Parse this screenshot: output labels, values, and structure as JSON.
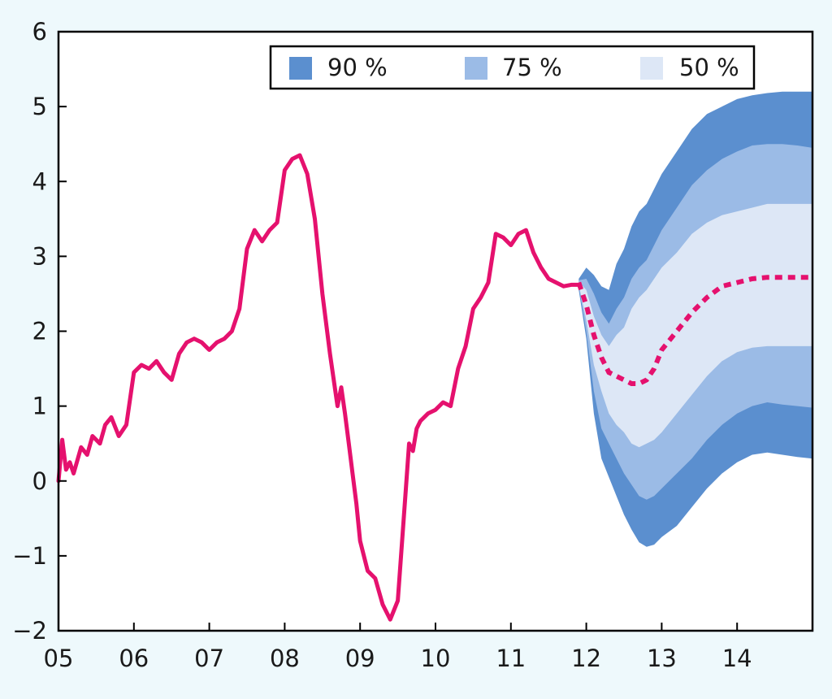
{
  "chart_data": {
    "type": "area",
    "title": "",
    "xlabel": "",
    "ylabel": "",
    "xlim": [
      2005.0,
      2015.0
    ],
    "ylim": [
      -2,
      6
    ],
    "x_ticks": [
      {
        "value": 2005,
        "label": "05"
      },
      {
        "value": 2006,
        "label": "06"
      },
      {
        "value": 2007,
        "label": "07"
      },
      {
        "value": 2008,
        "label": "08"
      },
      {
        "value": 2009,
        "label": "09"
      },
      {
        "value": 2010,
        "label": "10"
      },
      {
        "value": 2011,
        "label": "11"
      },
      {
        "value": 2012,
        "label": "12"
      },
      {
        "value": 2013,
        "label": "13"
      },
      {
        "value": 2014,
        "label": "14"
      }
    ],
    "y_ticks": [
      {
        "value": 6,
        "label": "6"
      },
      {
        "value": 5,
        "label": "5"
      },
      {
        "value": 4,
        "label": "4"
      },
      {
        "value": 3,
        "label": "3"
      },
      {
        "value": 2,
        "label": "2"
      },
      {
        "value": 1,
        "label": "1"
      },
      {
        "value": 0,
        "label": "0"
      },
      {
        "value": -1,
        "label": "−1"
      },
      {
        "value": -2,
        "label": "−2"
      }
    ],
    "grid": false,
    "legend": {
      "placement": "top-right",
      "entries": [
        {
          "label": "90 %",
          "color": "#5b8fcf"
        },
        {
          "label": "75 %",
          "color": "#9bbbe6"
        },
        {
          "label": "50 %",
          "color": "#dde7f6"
        }
      ]
    },
    "colors": {
      "actual": "#e5116e",
      "forecast": "#e5116e",
      "band90": "#5b8fcf",
      "band75": "#9bbbe6",
      "band50": "#dde7f6",
      "background": "#eef9fc",
      "plot_background": "#ffffff",
      "axis": "#000000"
    },
    "actual": {
      "x": [
        2005.0,
        2005.05,
        2005.1,
        2005.15,
        2005.2,
        2005.3,
        2005.38,
        2005.45,
        2005.55,
        2005.62,
        2005.7,
        2005.8,
        2005.9,
        2006.0,
        2006.1,
        2006.2,
        2006.3,
        2006.4,
        2006.5,
        2006.6,
        2006.7,
        2006.8,
        2006.9,
        2007.0,
        2007.1,
        2007.2,
        2007.3,
        2007.4,
        2007.5,
        2007.6,
        2007.7,
        2007.8,
        2007.9,
        2008.0,
        2008.1,
        2008.2,
        2008.3,
        2008.4,
        2008.5,
        2008.6,
        2008.7,
        2008.75,
        2008.8,
        2008.85,
        2008.9,
        2008.95,
        2009.0,
        2009.1,
        2009.2,
        2009.3,
        2009.4,
        2009.5,
        2009.6,
        2009.65,
        2009.7,
        2009.75,
        2009.8,
        2009.9,
        2010.0,
        2010.1,
        2010.2,
        2010.3,
        2010.4,
        2010.5,
        2010.6,
        2010.7,
        2010.8,
        2010.9,
        2011.0,
        2011.1,
        2011.2,
        2011.3,
        2011.4,
        2011.5,
        2011.6,
        2011.7,
        2011.8,
        2011.9
      ],
      "y": [
        0.0,
        0.55,
        0.15,
        0.25,
        0.1,
        0.45,
        0.35,
        0.6,
        0.5,
        0.75,
        0.85,
        0.6,
        0.75,
        1.45,
        1.55,
        1.5,
        1.6,
        1.45,
        1.35,
        1.7,
        1.85,
        1.9,
        1.85,
        1.75,
        1.85,
        1.9,
        2.0,
        2.3,
        3.1,
        3.35,
        3.2,
        3.35,
        3.45,
        4.15,
        4.3,
        4.35,
        4.1,
        3.5,
        2.5,
        1.7,
        1.0,
        1.25,
        0.9,
        0.5,
        0.1,
        -0.3,
        -0.8,
        -1.2,
        -1.3,
        -1.65,
        -1.85,
        -1.6,
        -0.2,
        0.5,
        0.4,
        0.7,
        0.8,
        0.9,
        0.95,
        1.05,
        1.0,
        1.5,
        1.8,
        2.3,
        2.45,
        2.65,
        3.3,
        3.25,
        3.15,
        3.3,
        3.35,
        3.05,
        2.85,
        2.7,
        2.65,
        2.6,
        2.62,
        2.62
      ]
    },
    "forecast": {
      "x": [
        2011.9,
        2012.0,
        2012.1,
        2012.2,
        2012.3,
        2012.4,
        2012.5,
        2012.6,
        2012.7,
        2012.8,
        2012.9,
        2013.0,
        2013.2,
        2013.4,
        2013.6,
        2013.8,
        2014.0,
        2014.2,
        2014.4,
        2014.6,
        2014.8,
        2014.99
      ],
      "y": [
        2.65,
        2.35,
        1.95,
        1.65,
        1.45,
        1.4,
        1.35,
        1.3,
        1.3,
        1.35,
        1.5,
        1.75,
        2.0,
        2.25,
        2.45,
        2.6,
        2.65,
        2.7,
        2.72,
        2.72,
        2.72,
        2.72
      ]
    },
    "bands": [
      {
        "name": "90 %",
        "x": [
          2011.9,
          2012.0,
          2012.1,
          2012.2,
          2012.3,
          2012.4,
          2012.5,
          2012.6,
          2012.7,
          2012.8,
          2012.9,
          2013.0,
          2013.2,
          2013.4,
          2013.6,
          2013.8,
          2014.0,
          2014.2,
          2014.4,
          2014.6,
          2014.8,
          2014.99
        ],
        "upper": [
          2.7,
          2.85,
          2.75,
          2.6,
          2.55,
          2.9,
          3.1,
          3.4,
          3.6,
          3.7,
          3.9,
          4.1,
          4.4,
          4.7,
          4.9,
          5.0,
          5.1,
          5.15,
          5.18,
          5.2,
          5.2,
          5.2
        ],
        "lower": [
          2.55,
          1.9,
          0.9,
          0.3,
          0.05,
          -0.2,
          -0.45,
          -0.65,
          -0.82,
          -0.88,
          -0.85,
          -0.75,
          -0.6,
          -0.35,
          -0.1,
          0.1,
          0.25,
          0.35,
          0.38,
          0.35,
          0.32,
          0.3
        ]
      },
      {
        "name": "75 %",
        "x": [
          2011.9,
          2012.0,
          2012.1,
          2012.2,
          2012.3,
          2012.4,
          2012.5,
          2012.6,
          2012.7,
          2012.8,
          2012.9,
          2013.0,
          2013.2,
          2013.4,
          2013.6,
          2013.8,
          2014.0,
          2014.2,
          2014.4,
          2014.6,
          2014.8,
          2014.99
        ],
        "upper": [
          2.68,
          2.7,
          2.5,
          2.25,
          2.1,
          2.3,
          2.45,
          2.7,
          2.85,
          2.95,
          3.15,
          3.35,
          3.65,
          3.95,
          4.15,
          4.3,
          4.4,
          4.48,
          4.5,
          4.5,
          4.48,
          4.45
        ],
        "lower": [
          2.6,
          2.0,
          1.2,
          0.7,
          0.5,
          0.3,
          0.1,
          -0.05,
          -0.2,
          -0.25,
          -0.2,
          -0.1,
          0.1,
          0.3,
          0.55,
          0.75,
          0.9,
          1.0,
          1.05,
          1.02,
          1.0,
          0.98
        ]
      },
      {
        "name": "50 %",
        "x": [
          2011.9,
          2012.0,
          2012.1,
          2012.2,
          2012.3,
          2012.4,
          2012.5,
          2012.6,
          2012.7,
          2012.8,
          2012.9,
          2013.0,
          2013.2,
          2013.4,
          2013.6,
          2013.8,
          2014.0,
          2014.2,
          2014.4,
          2014.6,
          2014.8,
          2014.99
        ],
        "upper": [
          2.66,
          2.55,
          2.2,
          1.95,
          1.8,
          1.95,
          2.05,
          2.3,
          2.45,
          2.55,
          2.7,
          2.85,
          3.05,
          3.3,
          3.45,
          3.55,
          3.6,
          3.65,
          3.7,
          3.7,
          3.7,
          3.7
        ],
        "lower": [
          2.62,
          2.15,
          1.55,
          1.2,
          0.9,
          0.75,
          0.65,
          0.5,
          0.45,
          0.5,
          0.55,
          0.65,
          0.9,
          1.15,
          1.4,
          1.6,
          1.72,
          1.78,
          1.8,
          1.8,
          1.8,
          1.8
        ]
      }
    ]
  }
}
